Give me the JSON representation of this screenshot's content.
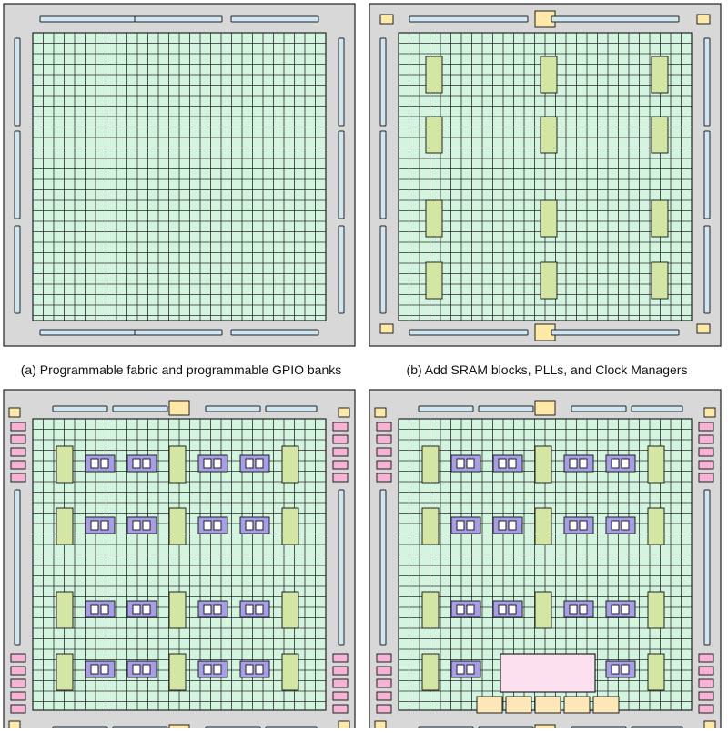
{
  "colors": {
    "chip_border": "#d8d8d8",
    "fabric": "#d3f5df",
    "grid_line": "#2b2b2b",
    "gpio_bank": "#cfe7f3",
    "sram_block": "#d4e6a4",
    "pll": "#ffe9a8",
    "clock_manager": "#f6b3d6",
    "dsp_block": "#a79ee8",
    "cpu_core": "#fde0f0",
    "peripheral": "#fde7b6"
  },
  "panels": [
    {
      "id": "a",
      "caption": "(a) Programmable fabric and programmable GPIO banks"
    },
    {
      "id": "b",
      "caption": "(b) Add SRAM blocks, PLLs, and Clock Managers"
    },
    {
      "id": "c",
      "caption": ""
    },
    {
      "id": "d",
      "caption": ""
    }
  ]
}
